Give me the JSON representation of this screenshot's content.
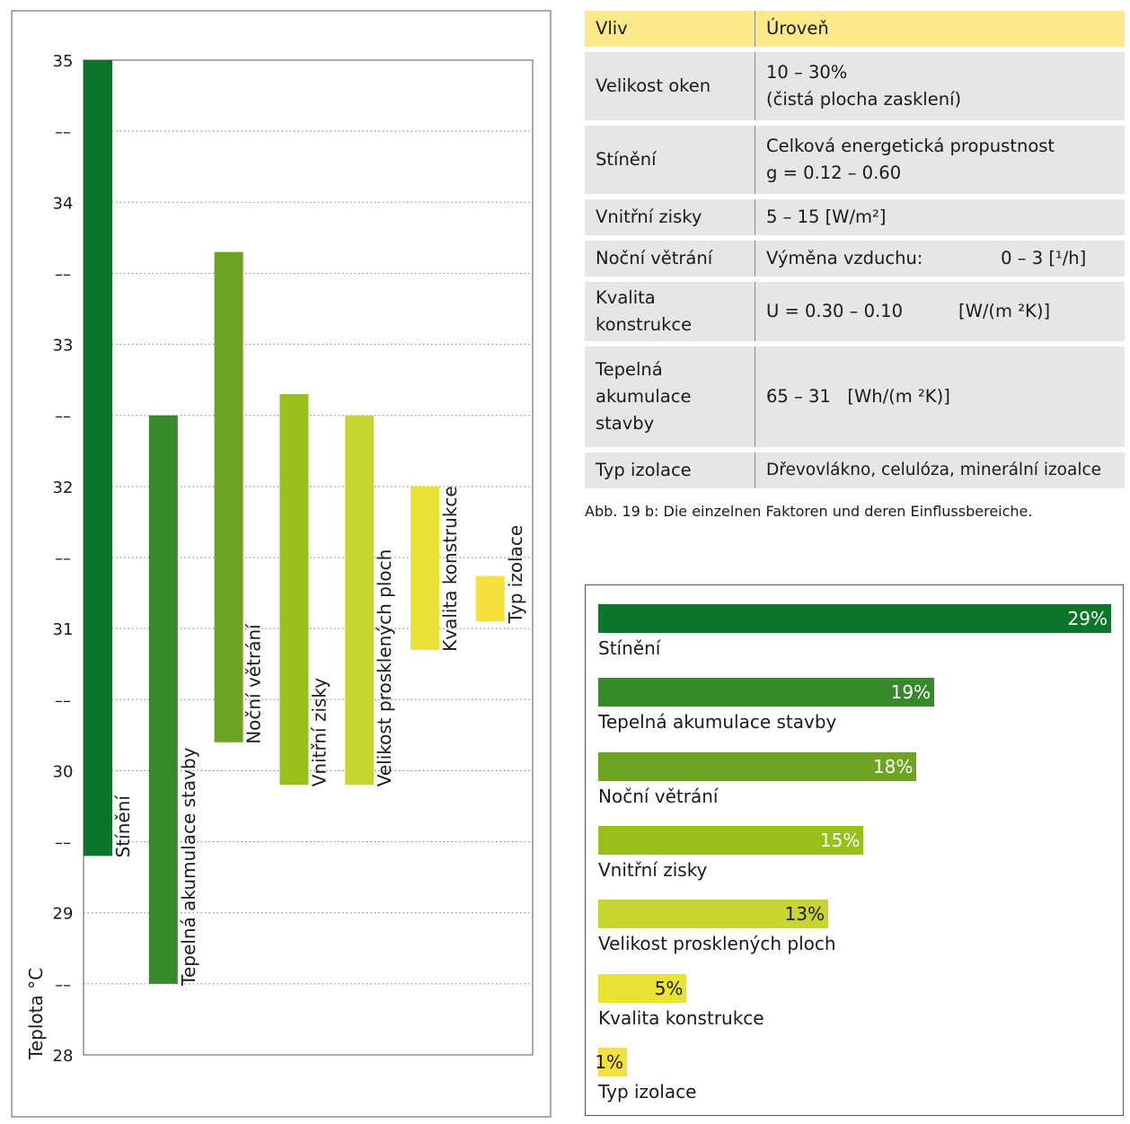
{
  "chart_data": [
    {
      "type": "range-bar",
      "ylabel": "Teplota °C",
      "ylim": [
        28,
        35
      ],
      "yticks": [
        "28",
        "––",
        "29",
        "––",
        "30",
        "––",
        "31",
        "––",
        "32",
        "––",
        "33",
        "––",
        "34",
        "––",
        "35"
      ],
      "grid": "dotted-horizontal",
      "series": [
        {
          "name": "Stínění",
          "low": 29.4,
          "high": 35.0,
          "color": "#0d7529"
        },
        {
          "name": "Tepelná akumulace stavby",
          "low": 28.5,
          "high": 32.5,
          "color": "#37892c"
        },
        {
          "name": "Noční větrání",
          "low": 30.2,
          "high": 33.65,
          "color": "#6ea221"
        },
        {
          "name": "Vnitřní zisky",
          "low": 29.9,
          "high": 32.65,
          "color": "#97c01b"
        },
        {
          "name": "Velikost prosklených ploch",
          "low": 29.9,
          "high": 32.5,
          "color": "#c8d52e"
        },
        {
          "name": "Kvalita konstrukce",
          "low": 30.85,
          "high": 32.0,
          "color": "#e9e234"
        },
        {
          "name": "Typ izolace",
          "low": 31.05,
          "high": 31.37,
          "color": "#f6e13c"
        }
      ]
    },
    {
      "type": "bar",
      "orientation": "horizontal",
      "categories": [
        "Stínění",
        "Tepelná akumulace stavby",
        "Noční větrání",
        "Vnitřní zisky",
        "Velikost prosklených ploch",
        "Kvalita konstrukce",
        "Typ izolace"
      ],
      "values": [
        29,
        19,
        18,
        15,
        13,
        5,
        1
      ],
      "labels": [
        "29%",
        "19%",
        "18%",
        "15%",
        "13%",
        "5%",
        "1%"
      ],
      "colors": [
        "#0d7529",
        "#37892c",
        "#6ea221",
        "#97c01b",
        "#c8d52e",
        "#e9e234",
        "#f6e13c"
      ],
      "text_colors": [
        "#ffffff",
        "#ffffff",
        "#ffffff",
        "#ffffff",
        "#1a1a1a",
        "#1a1a1a",
        "#1a1a1a"
      ]
    }
  ],
  "table": {
    "headers": [
      "Vliv",
      "Úroveň"
    ],
    "rows": [
      {
        "factor": "Velikost oken",
        "level": "10 – 30%\n(čistá plocha zasklení)"
      },
      {
        "factor": "Stínění",
        "level": "Celková energetická propustnost\ng = 0.12 – 0.60"
      },
      {
        "factor": "Vnitřní zisky",
        "level": "5 – 15   [W/m²]"
      },
      {
        "factor": "Noční větrání",
        "level": "Výměna vzduchu:              0 – 3 [¹/h]"
      },
      {
        "factor": "Kvalita\nkonstrukce",
        "level": "U = 0.30 – 0.10          [W/(m ²K)]"
      },
      {
        "factor": "Tepelná\nakumulace\nstavby",
        "level": "65 – 31   [Wh/(m ²K)]"
      },
      {
        "factor": "Typ izolace",
        "level": "Dřevovlákno, celulóza, minerální izoalce"
      }
    ]
  },
  "caption": "Abb. 19 b:  Die einzelnen Faktoren und deren Einflussbereiche."
}
